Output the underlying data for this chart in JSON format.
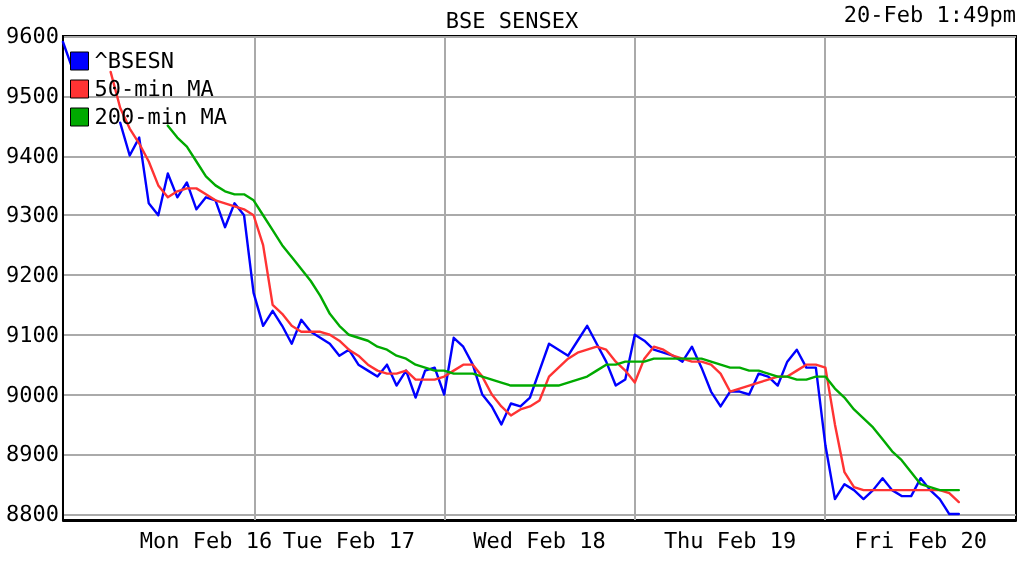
{
  "chart_data": {
    "type": "line",
    "title": "BSE SENSEX",
    "annotations": [
      "20-Feb 1:49pm"
    ],
    "categories": [
      null,
      null,
      null,
      null,
      null,
      null,
      null,
      null,
      null,
      null,
      null,
      null,
      null,
      null,
      null,
      "Mon Feb 16",
      null,
      null,
      null,
      null,
      null,
      null,
      null,
      null,
      null,
      null,
      null,
      null,
      null,
      null,
      "Tue Feb 17",
      null,
      null,
      null,
      null,
      null,
      null,
      null,
      null,
      null,
      null,
      null,
      null,
      null,
      null,
      null,
      null,
      null,
      null,
      null,
      "Wed Feb 18",
      null,
      null,
      null,
      null,
      null,
      null,
      null,
      null,
      null,
      null,
      null,
      null,
      null,
      null,
      null,
      null,
      null,
      null,
      null,
      "Thu Feb 19",
      null,
      null,
      null,
      null,
      null,
      null,
      null,
      null,
      null,
      null,
      null,
      null,
      null,
      null,
      null,
      null,
      null,
      null,
      null,
      "Fri Feb 20",
      null,
      null,
      null,
      null,
      null,
      null,
      null,
      null,
      null,
      null
    ],
    "ylim": [
      8790,
      9600
    ],
    "yticks": [
      8800,
      8900,
      9000,
      9100,
      9200,
      9300,
      9400,
      9500,
      9600
    ],
    "grid": true,
    "legend": "top left",
    "marker": "none",
    "line_style": "solid",
    "series": [
      {
        "name": "^BSESN",
        "color": "#0000ff",
        "values": [
          9590,
          9545,
          null,
          null,
          null,
          null,
          9455,
          9400,
          9430,
          9320,
          9300,
          9370,
          9330,
          9355,
          9310,
          9330,
          9325,
          9280,
          9320,
          9300,
          9170,
          9115,
          9140,
          9115,
          9085,
          9125,
          9105,
          9095,
          9085,
          9065,
          9075,
          9050,
          9040,
          9030,
          9050,
          9015,
          9040,
          8995,
          9040,
          9045,
          9000,
          9095,
          9080,
          9050,
          9000,
          8980,
          8950,
          8985,
          8980,
          8995,
          9040,
          9085,
          9075,
          9065,
          9090,
          9115,
          9085,
          9055,
          9015,
          9025,
          9100,
          9090,
          9075,
          9070,
          9065,
          9055,
          9080,
          9045,
          9005,
          8980,
          9005,
          9005,
          9000,
          9035,
          9030,
          9015,
          9055,
          9075,
          9045,
          9045,
          8915,
          8825,
          8850,
          8840,
          8825,
          8840,
          8860,
          8840,
          8830,
          8830,
          8860,
          8840,
          8825,
          8800,
          8800,
          null,
          null,
          null,
          null,
          null,
          null
        ]
      },
      {
        "name": "50-min MA",
        "color": "#ff3333",
        "values": [
          null,
          null,
          null,
          null,
          null,
          9540,
          9480,
          9445,
          9420,
          9390,
          9350,
          9330,
          9340,
          9345,
          9345,
          9335,
          9325,
          9320,
          9315,
          9310,
          9300,
          9250,
          9150,
          9135,
          9115,
          9105,
          9105,
          9105,
          9100,
          9090,
          9075,
          9065,
          9050,
          9040,
          9035,
          9035,
          9040,
          9025,
          9025,
          9025,
          9030,
          9040,
          9050,
          9050,
          9030,
          9000,
          8980,
          8965,
          8975,
          8980,
          8990,
          9030,
          9045,
          9060,
          9070,
          9075,
          9080,
          9075,
          9055,
          9040,
          9020,
          9060,
          9080,
          9075,
          9065,
          9060,
          9055,
          9055,
          9050,
          9035,
          9005,
          9010,
          9015,
          9020,
          9025,
          9030,
          9030,
          9040,
          9050,
          9050,
          9045,
          8950,
          8870,
          8845,
          8840,
          8840,
          8840,
          8840,
          8840,
          8840,
          8840,
          8840,
          8840,
          8835,
          8820,
          null,
          null,
          null,
          null,
          null,
          null
        ]
      },
      {
        "name": "200-min MA",
        "color": "#00aa00",
        "values": [
          null,
          null,
          null,
          null,
          null,
          null,
          null,
          null,
          null,
          null,
          null,
          9450,
          9430,
          9415,
          9390,
          9365,
          9350,
          9340,
          9335,
          9335,
          9325,
          9300,
          9275,
          9250,
          9230,
          9210,
          9190,
          9165,
          9135,
          9115,
          9100,
          9095,
          9090,
          9080,
          9075,
          9065,
          9060,
          9050,
          9045,
          9040,
          9040,
          9035,
          9035,
          9035,
          9030,
          9025,
          9020,
          9015,
          9015,
          9015,
          9015,
          9015,
          9015,
          9020,
          9025,
          9030,
          9040,
          9050,
          9050,
          9055,
          9055,
          9055,
          9060,
          9060,
          9060,
          9060,
          9060,
          9060,
          9055,
          9050,
          9045,
          9045,
          9040,
          9040,
          9035,
          9030,
          9030,
          9025,
          9025,
          9030,
          9030,
          9010,
          8995,
          8975,
          8960,
          8945,
          8925,
          8905,
          8890,
          8870,
          8850,
          8845,
          8840,
          8840,
          8840,
          null,
          null,
          null,
          null,
          null,
          null
        ]
      }
    ]
  }
}
